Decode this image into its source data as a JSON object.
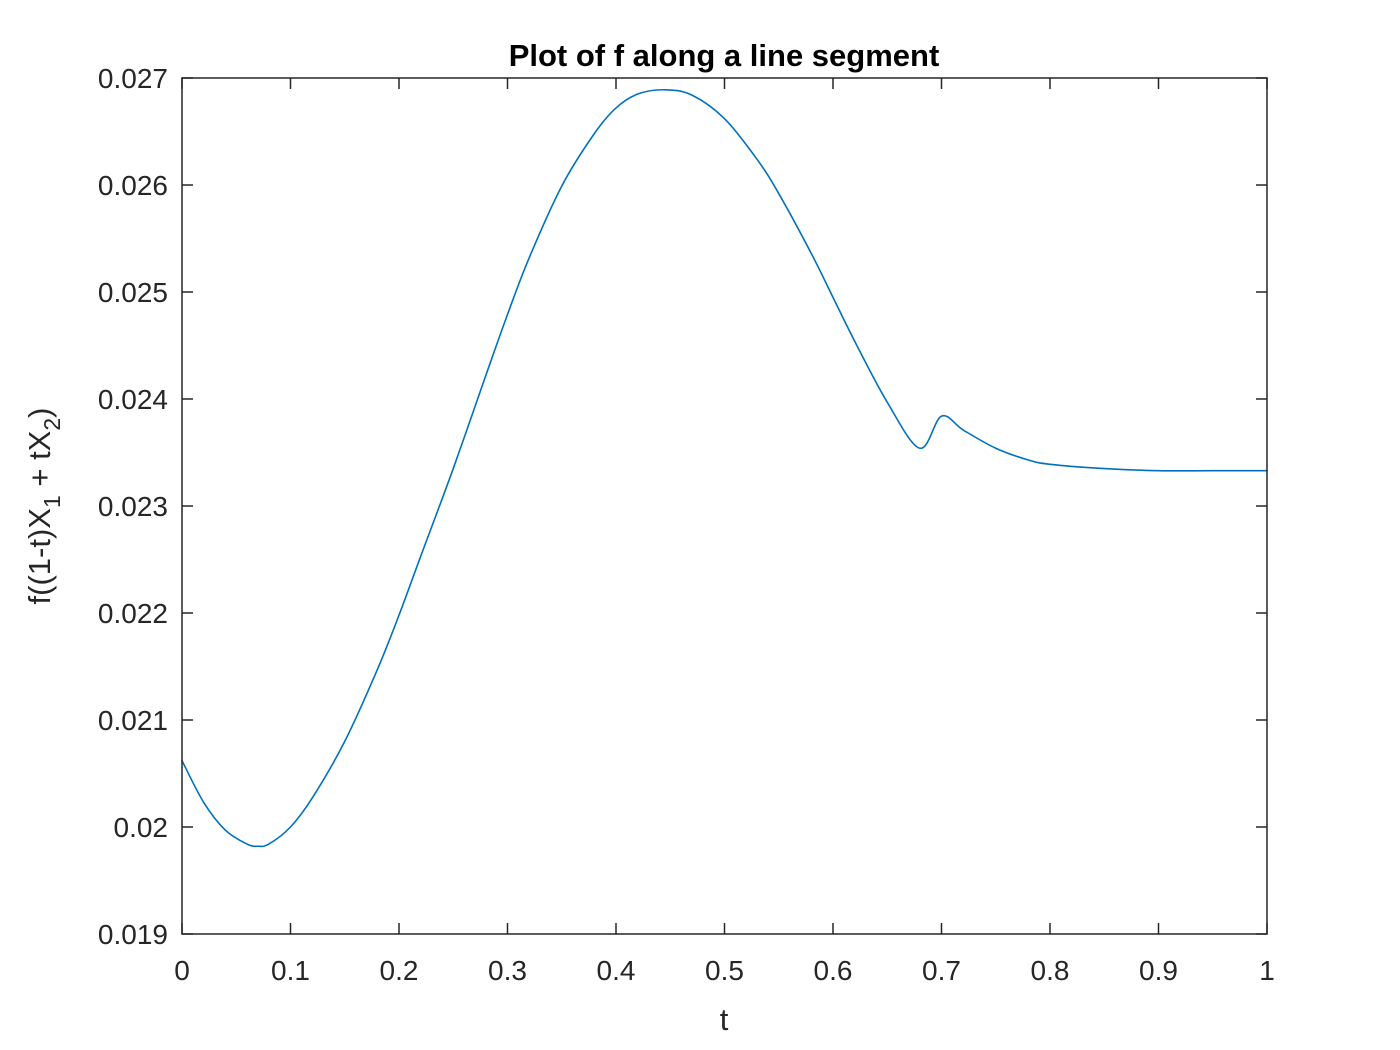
{
  "chart_data": {
    "type": "line",
    "title": "Plot of f along a line segment",
    "xlabel": "t",
    "ylabel": {
      "parts": [
        "f((1-t)X",
        "1",
        " + tX",
        "2",
        ")"
      ]
    },
    "xlim": [
      0,
      1
    ],
    "ylim": [
      0.019,
      0.027
    ],
    "xticks": [
      0,
      0.1,
      0.2,
      0.3,
      0.4,
      0.5,
      0.6,
      0.7,
      0.8,
      0.9,
      1
    ],
    "xtick_labels": [
      "0",
      "0.1",
      "0.2",
      "0.3",
      "0.4",
      "0.5",
      "0.6",
      "0.7",
      "0.8",
      "0.9",
      "1"
    ],
    "yticks": [
      0.019,
      0.02,
      0.021,
      0.022,
      0.023,
      0.024,
      0.025,
      0.026,
      0.027
    ],
    "ytick_labels": [
      "0.019",
      "0.02",
      "0.021",
      "0.022",
      "0.023",
      "0.024",
      "0.025",
      "0.026",
      "0.027"
    ],
    "grid": false,
    "line_color": "#0072BD",
    "series": [
      {
        "x": [
          0,
          0.02,
          0.04,
          0.06,
          0.07,
          0.08,
          0.1,
          0.12,
          0.15,
          0.18,
          0.2,
          0.22,
          0.25,
          0.28,
          0.3,
          0.32,
          0.35,
          0.38,
          0.4,
          0.42,
          0.445,
          0.47,
          0.5,
          0.53,
          0.55,
          0.58,
          0.6,
          0.62,
          0.65,
          0.68,
          0.7,
          0.72,
          0.75,
          0.78,
          0.8,
          0.85,
          0.9,
          0.95,
          1
        ],
        "y": [
          0.02062,
          0.02023,
          0.01997,
          0.01984,
          0.01982,
          0.01984,
          0.02,
          0.02027,
          0.0208,
          0.02147,
          0.02198,
          0.02253,
          0.02335,
          0.02422,
          0.02479,
          0.02532,
          0.02599,
          0.02648,
          0.02672,
          0.02685,
          0.02689,
          0.02684,
          0.02662,
          0.02624,
          0.02592,
          0.02536,
          0.02495,
          0.02454,
          0.02397,
          0.02354,
          0.02384,
          0.02371,
          0.02354,
          0.02343,
          0.02339,
          0.02335,
          0.02333,
          0.02333,
          0.02333
        ]
      }
    ]
  }
}
